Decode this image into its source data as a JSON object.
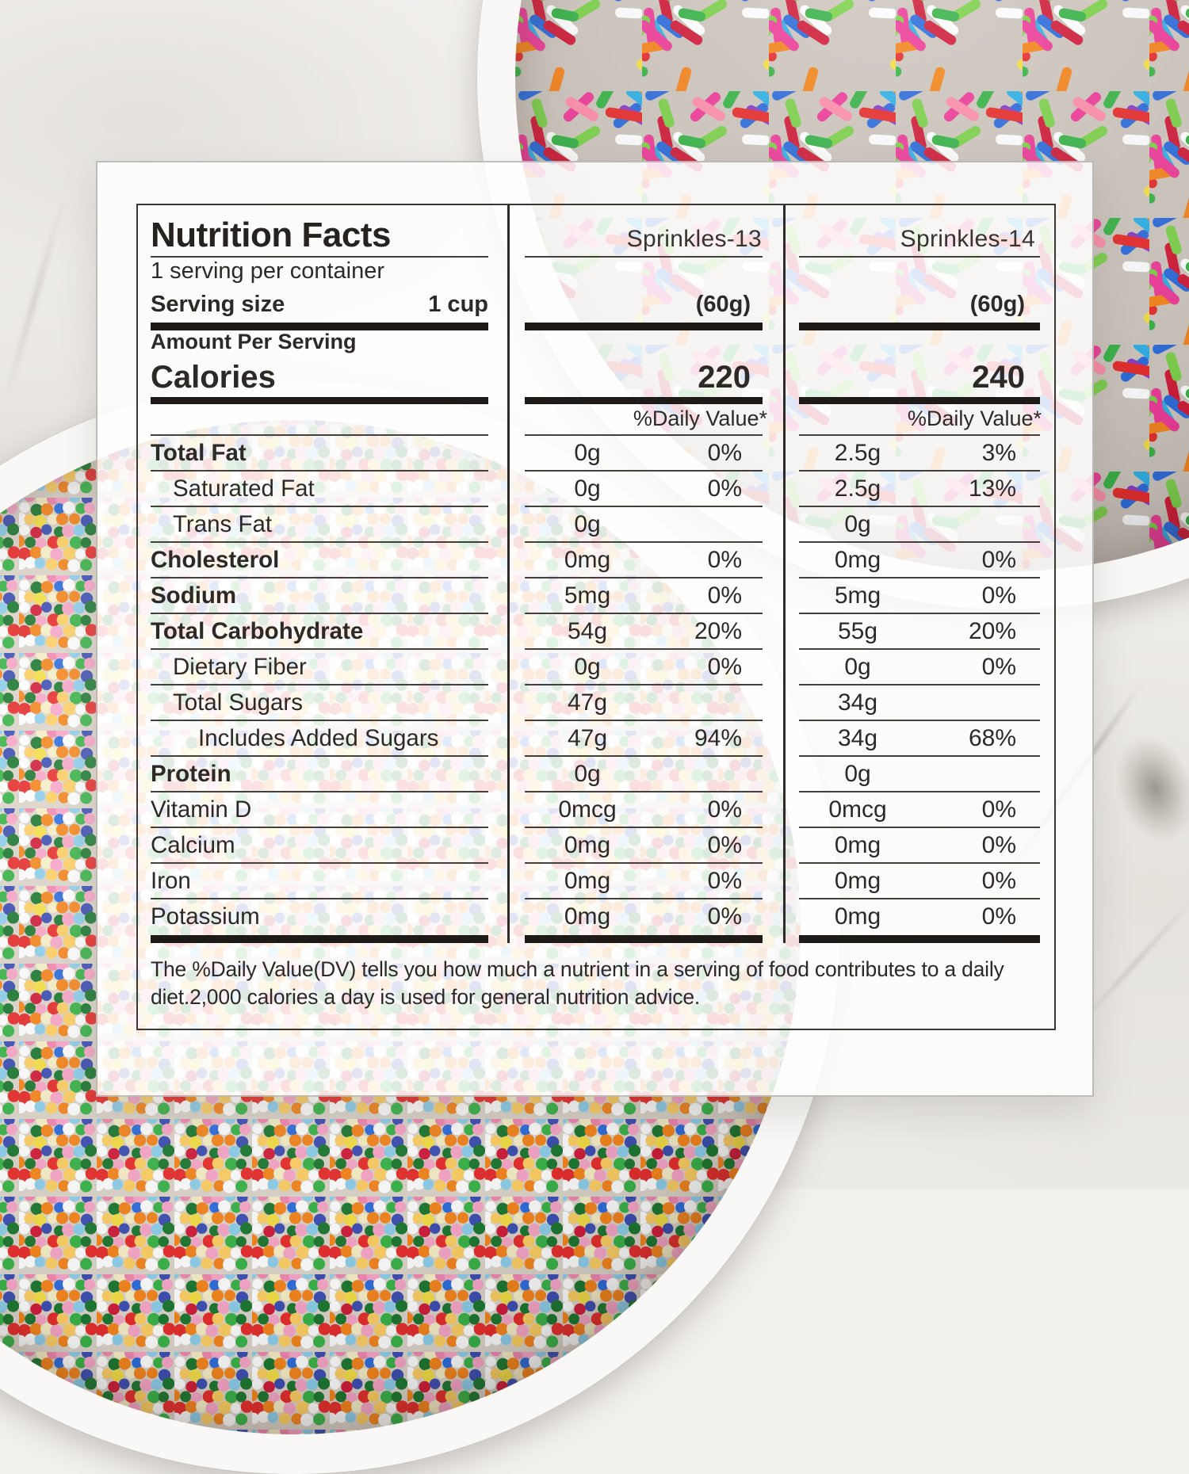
{
  "label": {
    "title": "Nutrition Facts",
    "servings_per_container": "1 serving per container",
    "serving_size_label": "Serving size",
    "serving_size_value": "1 cup",
    "amount_per_serving": "Amount Per Serving",
    "calories_label": "Calories",
    "daily_value_header": "%Daily Value*",
    "footnote": "The %Daily Value(DV) tells you how much a nutrient in a serving of food contributes to a daily diet.2,000 calories a day is used for general nutrition advice."
  },
  "products": [
    {
      "name": "Sprinkles-13",
      "serving_weight": "(60g)",
      "calories": "220"
    },
    {
      "name": "Sprinkles-14",
      "serving_weight": "(60g)",
      "calories": "240"
    }
  ],
  "rows": [
    {
      "label": "Total Fat",
      "p1": {
        "amount": "0g",
        "dv": "0%"
      },
      "p2": {
        "amount": "2.5g",
        "dv": "3%"
      }
    },
    {
      "label": "Saturated Fat",
      "p1": {
        "amount": "0g",
        "dv": "0%"
      },
      "p2": {
        "amount": "2.5g",
        "dv": "13%"
      }
    },
    {
      "label": "Trans Fat",
      "p1": {
        "amount": "0g",
        "dv": ""
      },
      "p2": {
        "amount": "0g",
        "dv": ""
      }
    },
    {
      "label": "Cholesterol",
      "p1": {
        "amount": "0mg",
        "dv": "0%"
      },
      "p2": {
        "amount": "0mg",
        "dv": "0%"
      }
    },
    {
      "label": "Sodium",
      "p1": {
        "amount": "5mg",
        "dv": "0%"
      },
      "p2": {
        "amount": "5mg",
        "dv": "0%"
      }
    },
    {
      "label": "Total Carbohydrate",
      "p1": {
        "amount": "54g",
        "dv": "20%"
      },
      "p2": {
        "amount": "55g",
        "dv": "20%"
      }
    },
    {
      "label": "Dietary Fiber",
      "p1": {
        "amount": "0g",
        "dv": "0%"
      },
      "p2": {
        "amount": "0g",
        "dv": "0%"
      }
    },
    {
      "label": "Total Sugars",
      "p1": {
        "amount": "47g",
        "dv": ""
      },
      "p2": {
        "amount": "34g",
        "dv": ""
      }
    },
    {
      "label": "Includes Added Sugars",
      "p1": {
        "amount": "47g",
        "dv": "94%"
      },
      "p2": {
        "amount": "34g",
        "dv": "68%"
      }
    },
    {
      "label": "Protein",
      "p1": {
        "amount": "0g",
        "dv": ""
      },
      "p2": {
        "amount": "0g",
        "dv": ""
      }
    },
    {
      "label": "Vitamin D",
      "p1": {
        "amount": "0mcg",
        "dv": "0%"
      },
      "p2": {
        "amount": "0mcg",
        "dv": "0%"
      }
    },
    {
      "label": "Calcium",
      "p1": {
        "amount": "0mg",
        "dv": "0%"
      },
      "p2": {
        "amount": "0mg",
        "dv": "0%"
      }
    },
    {
      "label": "Iron",
      "p1": {
        "amount": "0mg",
        "dv": "0%"
      },
      "p2": {
        "amount": "0mg",
        "dv": "0%"
      }
    },
    {
      "label": "Potassium",
      "p1": {
        "amount": "0mg",
        "dv": "0%"
      },
      "p2": {
        "amount": "0mg",
        "dv": "0%"
      }
    }
  ],
  "colors": {
    "text": "#2d2926",
    "heavy_bar": "#1d1a17",
    "thin_rule": "#43403b",
    "card_background": "rgba(255,255,255,0.845)"
  },
  "photo": {
    "bowl_color": "#f9f8f6",
    "rod_colors": [
      "#e8302e",
      "#ef3f9b",
      "#2f6fde",
      "#33b2e8",
      "#3bb54a",
      "#f6e049",
      "#f6871f",
      "#8740c9",
      "#ffffff",
      "#d21f3c",
      "#2b3e9e",
      "#7fd34e",
      "#ff8fab"
    ],
    "ball_colors": [
      "#e8302e",
      "#f28ab2",
      "#2f6fde",
      "#8fd0ec",
      "#3bb54a",
      "#1f7a33",
      "#f6e049",
      "#f7f0c8",
      "#ffffff",
      "#8740c9",
      "#f6871f",
      "#d21f3c",
      "#3f51b5",
      "#f9a8c9",
      "#ffd166"
    ]
  }
}
